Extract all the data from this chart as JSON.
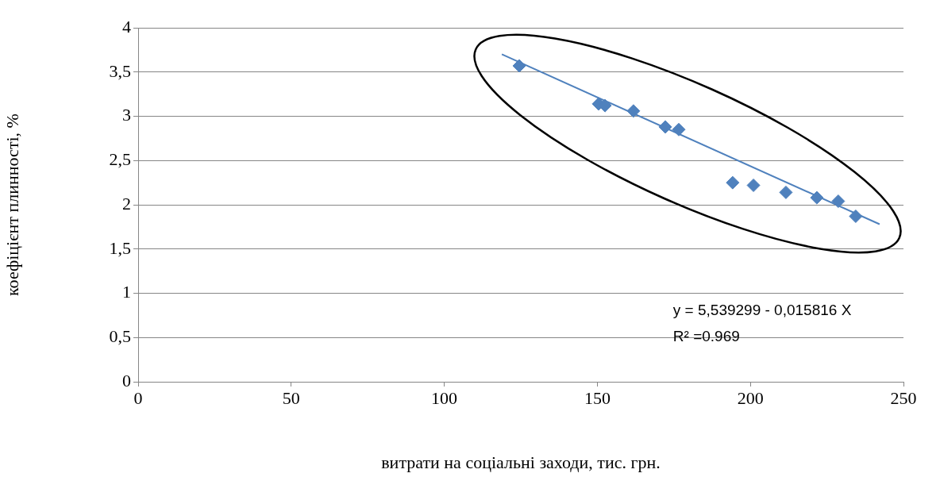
{
  "chart_data": {
    "type": "scatter",
    "xlabel": "витрати на соціальні заходи, тис. грн.",
    "ylabel": "коефіцієнт плинності, %",
    "xlim": [
      0,
      250
    ],
    "xticks": [
      0,
      50,
      100,
      150,
      200,
      250
    ],
    "ylim": [
      0,
      4
    ],
    "yticks": [
      0,
      {
        "value": 0.5,
        "label": "0,5"
      },
      1,
      {
        "value": 1.5,
        "label": "1,5"
      },
      2,
      {
        "value": 2.5,
        "label": "2,5"
      },
      3,
      {
        "value": 3.5,
        "label": "3,5"
      },
      4
    ],
    "grid": "y",
    "legend": false,
    "marker": "diamond",
    "series": [
      {
        "color": "#4f81bd",
        "x": [
          124.5,
          150.4,
          152.5,
          161.8,
          172.2,
          176.6,
          194.2,
          201,
          211.6,
          221.7,
          228.7,
          234.4
        ],
        "values": [
          3.57,
          3.14,
          3.12,
          3.06,
          2.88,
          2.85,
          2.25,
          2.22,
          2.14,
          2.08,
          2.04,
          1.87
        ]
      },
      {
        "type": "line",
        "marker": "none",
        "color": "#4f81bd",
        "x": [
          118.8,
          242.2
        ],
        "values": [
          3.7,
          1.78
        ]
      }
    ],
    "annotations": [
      "y = 5,539299 - 0,015816 X",
      "R² =0.969"
    ]
  }
}
